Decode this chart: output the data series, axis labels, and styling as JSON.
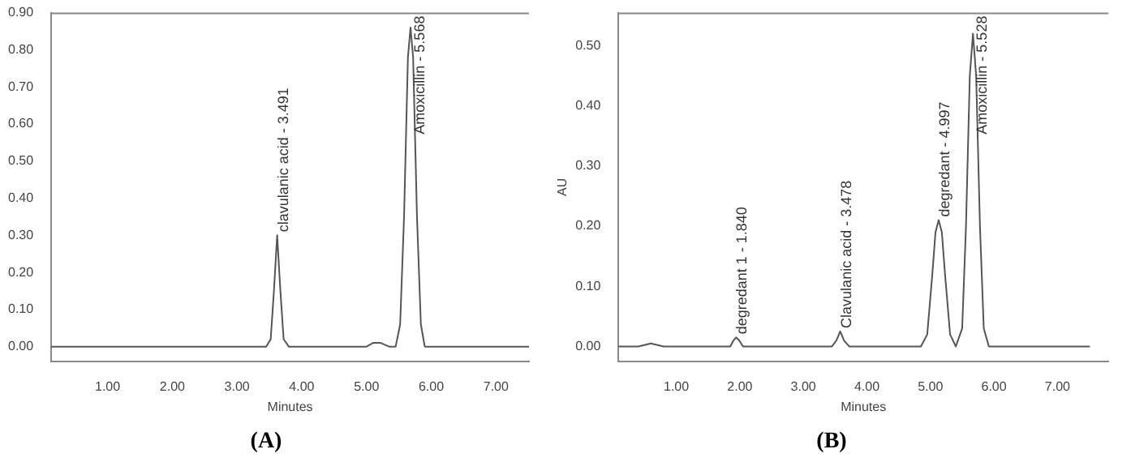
{
  "chart_data": [
    {
      "type": "line",
      "title": "(A)",
      "xlabel": "Minutes",
      "xlim": [
        0.13,
        7.51
      ],
      "ylim": [
        -0.04,
        0.9
      ],
      "xticks": [
        {
          "value": 1,
          "label": "1.00"
        },
        {
          "value": 2,
          "label": "2.00"
        },
        {
          "value": 3,
          "label": "3.00"
        },
        {
          "value": 4,
          "label": "4.00"
        },
        {
          "value": 5,
          "label": "5.00"
        },
        {
          "value": 6,
          "label": "6.00"
        },
        {
          "value": 7,
          "label": "7.00"
        }
      ],
      "yticks": [
        {
          "value": 0,
          "label": "0.00"
        },
        {
          "value": 0.1,
          "label": "0.10"
        },
        {
          "value": 0.2,
          "label": "0.20"
        },
        {
          "value": 0.3,
          "label": "0.30"
        },
        {
          "value": 0.4,
          "label": "0.40"
        },
        {
          "value": 0.5,
          "label": "0.50"
        },
        {
          "value": 0.6,
          "label": "0.60"
        },
        {
          "value": 0.7,
          "label": "0.70"
        },
        {
          "value": 0.8,
          "label": "0.80"
        },
        {
          "value": 0.9,
          "label": "0.90"
        }
      ],
      "grid": false,
      "legend": false,
      "marker": "none",
      "line_style": "solid",
      "series": [
        {
          "color": "#555555",
          "x": [
            0.13,
            1.8,
            3.3,
            3.45,
            3.52,
            3.57,
            3.62,
            3.67,
            3.72,
            3.8,
            4.8,
            5.0,
            5.1,
            5.15,
            5.22,
            5.35,
            5.45,
            5.52,
            5.58,
            5.64,
            5.68,
            5.72,
            5.78,
            5.84,
            5.9,
            6.0,
            7.5
          ],
          "values": [
            0,
            0,
            0,
            0,
            0.02,
            0.15,
            0.3,
            0.15,
            0.02,
            0,
            0,
            0,
            0.01,
            0.01,
            0.01,
            0,
            0,
            0.06,
            0.35,
            0.78,
            0.86,
            0.78,
            0.35,
            0.06,
            0,
            0,
            0
          ]
        }
      ],
      "annotations": [
        {
          "text": "clavulanic acid - 3.491",
          "x": 3.62,
          "y": 0.3
        },
        {
          "text": "Amoxicillin - 5.568",
          "x": 5.68,
          "y": 0.86
        }
      ]
    },
    {
      "type": "line",
      "title": "(B)",
      "xlabel": "Minutes",
      "ylabel": "AU",
      "xlim": [
        0.09,
        7.8
      ],
      "ylim": [
        -0.025,
        0.555
      ],
      "xticks": [
        {
          "value": 1,
          "label": "1.00"
        },
        {
          "value": 2,
          "label": "2.00"
        },
        {
          "value": 3,
          "label": "3.00"
        },
        {
          "value": 4,
          "label": "4.00"
        },
        {
          "value": 5,
          "label": "5.00"
        },
        {
          "value": 6,
          "label": "6.00"
        },
        {
          "value": 7,
          "label": "7.00"
        }
      ],
      "yticks": [
        {
          "value": 0,
          "label": "0.00"
        },
        {
          "value": 0.1,
          "label": "0.10"
        },
        {
          "value": 0.2,
          "label": "0.20"
        },
        {
          "value": 0.3,
          "label": "0.30"
        },
        {
          "value": 0.4,
          "label": "0.40"
        },
        {
          "value": 0.5,
          "label": "0.50"
        }
      ],
      "grid": false,
      "legend": false,
      "marker": "none",
      "line_style": "solid",
      "series": [
        {
          "color": "#555555",
          "x": [
            0.09,
            0.4,
            0.6,
            0.8,
            1.0,
            1.85,
            1.9,
            1.94,
            1.99,
            2.05,
            2.35,
            3.45,
            3.52,
            3.58,
            3.64,
            3.72,
            4.85,
            4.95,
            5.03,
            5.08,
            5.13,
            5.18,
            5.23,
            5.31,
            5.4,
            5.5,
            5.56,
            5.62,
            5.67,
            5.72,
            5.78,
            5.84,
            5.92,
            7.5
          ],
          "values": [
            0,
            0,
            0.005,
            0,
            0,
            0,
            0.01,
            0.015,
            0.01,
            0,
            0,
            0,
            0.01,
            0.025,
            0.01,
            0,
            0,
            0.02,
            0.12,
            0.19,
            0.21,
            0.19,
            0.12,
            0.02,
            0,
            0.03,
            0.2,
            0.45,
            0.52,
            0.45,
            0.2,
            0.03,
            0,
            0
          ]
        }
      ],
      "annotations": [
        {
          "text": "degredant 1 - 1.840",
          "x": 1.94,
          "y": 0.015
        },
        {
          "text": "Clavulanic acid - 3.478",
          "x": 3.58,
          "y": 0.025
        },
        {
          "text": "degredant - 4.997",
          "x": 5.13,
          "y": 0.21
        },
        {
          "text": "Amoxicillin - 5.528",
          "x": 5.67,
          "y": 0.52
        }
      ]
    }
  ]
}
